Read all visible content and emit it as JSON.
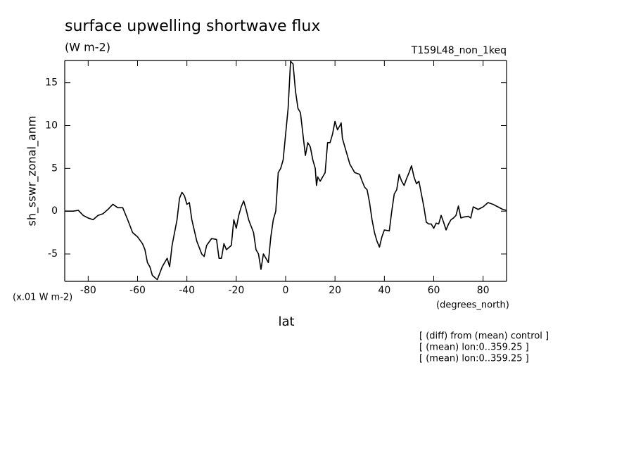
{
  "chart_data": {
    "type": "line",
    "title": "surface upwelling shortwave flux",
    "subtitle": "(W m-2)",
    "experiment": "T159L48_non_1keq",
    "y_label": "sh_sswr_zonal_anm",
    "y_scale_note": "(x.01 W m-2)",
    "x_units": "(degrees_north)",
    "x_label": "lat",
    "annotations": [
      "[ (diff) from (mean) control ]",
      "[ (mean) lon:0..359.25 ]",
      "[ (mean) lon:0..359.25 ]"
    ],
    "color": "#000000",
    "xlim": [
      -89.5,
      89.5
    ],
    "ylim": [
      -8.2,
      17.6
    ],
    "xticks": [
      -80,
      -60,
      -40,
      -20,
      0,
      20,
      40,
      60,
      80
    ],
    "yticks": [
      -5,
      0,
      5,
      10,
      15
    ],
    "x": [
      -89.5,
      -86,
      -84,
      -82,
      -80,
      -78,
      -76,
      -74,
      -72,
      -70,
      -68,
      -66,
      -64,
      -62,
      -60,
      -58,
      -57,
      -56,
      -55,
      -54,
      -52,
      -50,
      -48,
      -47,
      -46,
      -44,
      -43,
      -42,
      -41,
      -40,
      -39,
      -38,
      -36,
      -34,
      -33,
      -32,
      -30,
      -28,
      -27,
      -26,
      -25,
      -24,
      -22,
      -21,
      -20,
      -19,
      -18,
      -17,
      -16,
      -15,
      -13,
      -12,
      -11,
      -10,
      -9,
      -8,
      -7,
      -6,
      -5,
      -4,
      -3,
      -2,
      -1,
      0,
      1,
      2,
      3,
      4,
      5,
      6,
      7,
      8,
      9,
      10,
      11,
      12,
      12.5,
      13,
      14,
      15,
      16,
      17,
      18,
      19,
      20,
      21,
      22,
      22.5,
      23,
      24,
      25,
      26,
      28,
      30,
      31,
      32,
      33,
      34,
      35,
      36,
      37,
      38,
      39,
      40,
      42,
      43,
      44,
      45,
      46,
      47,
      48,
      49,
      50,
      51,
      52,
      53,
      54,
      55,
      56,
      57,
      58,
      59,
      60,
      61,
      62,
      63,
      64,
      65,
      66,
      67,
      68,
      69,
      70,
      71,
      72,
      74,
      75,
      76,
      78,
      80,
      82,
      84,
      86,
      88,
      89.5
    ],
    "values": [
      0,
      0,
      0.1,
      -0.5,
      -0.8,
      -1,
      -0.5,
      -0.3,
      0.2,
      0.8,
      0.4,
      0.4,
      -1,
      -2.5,
      -3,
      -3.8,
      -4.5,
      -6,
      -6.5,
      -7.5,
      -8,
      -6.5,
      -5.5,
      -6.5,
      -4,
      -1,
      1.5,
      2.2,
      1.8,
      0.8,
      1,
      -1,
      -3.5,
      -5,
      -5.3,
      -4,
      -3.2,
      -3.3,
      -5.5,
      -5.5,
      -3.8,
      -4.5,
      -4,
      -1,
      -2,
      -0.5,
      0.5,
      1.2,
      0.2,
      -1,
      -2.5,
      -4.5,
      -5,
      -6.8,
      -5,
      -5.5,
      -6,
      -3,
      -1,
      0,
      4.5,
      5,
      6,
      9,
      12,
      17.5,
      17.2,
      14,
      12,
      11.5,
      9,
      6.5,
      8,
      7.5,
      6,
      5,
      3,
      4,
      3.5,
      4,
      4.5,
      8,
      8,
      9,
      10.5,
      9.5,
      10,
      10.3,
      8.5,
      7.5,
      6.5,
      5.5,
      4.5,
      4.3,
      3.5,
      2.8,
      2.5,
      1,
      -1,
      -2.5,
      -3.5,
      -4.2,
      -3,
      -2.2,
      -2.3,
      0,
      2,
      2.5,
      4.3,
      3.5,
      3,
      3.8,
      4.5,
      5.3,
      4,
      3.2,
      3.5,
      2,
      0.5,
      -1.3,
      -1.5,
      -1.5,
      -2,
      -1.4,
      -1.5,
      -0.5,
      -1.3,
      -2.2,
      -1.5,
      -1,
      -0.8,
      -0.5,
      0.6,
      -0.8,
      -0.7,
      -0.6,
      -0.8,
      0.5,
      0.2,
      0.5,
      1,
      0.8,
      0.5,
      0.2,
      0.1
    ]
  }
}
